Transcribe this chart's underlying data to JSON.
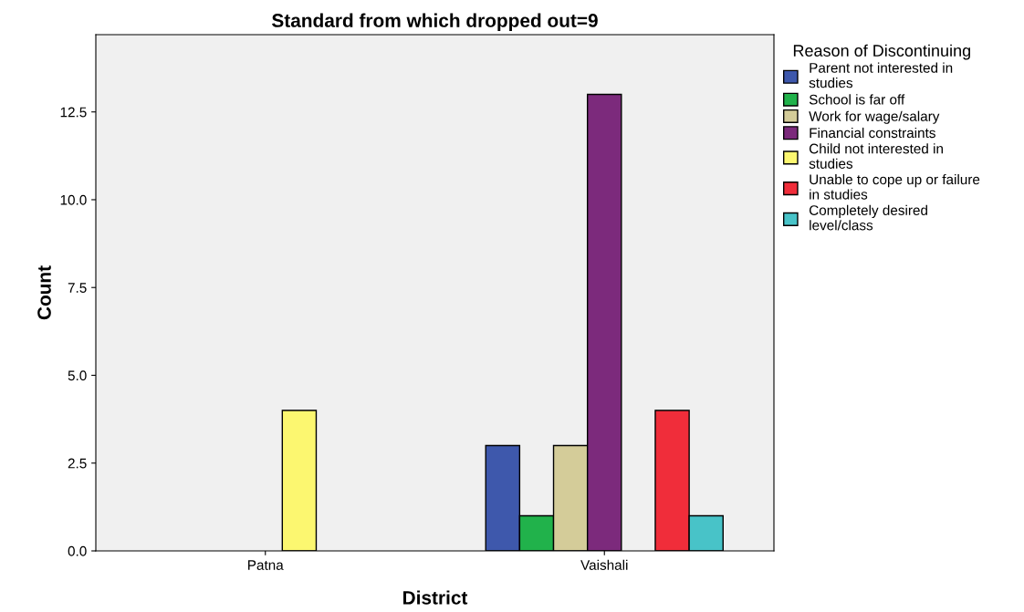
{
  "chart_data": {
    "type": "bar",
    "title": "Standard from which dropped out=9",
    "xlabel": "District",
    "ylabel": "Count",
    "legend_title": "Reason of Discontinuing",
    "categories": [
      "Patna",
      "Vaishali"
    ],
    "series": [
      {
        "name": "Parent not interested in\nstudies",
        "color": "#3e58ac",
        "values": [
          null,
          3
        ]
      },
      {
        "name": "School is far off",
        "color": "#21b24b",
        "values": [
          null,
          1
        ]
      },
      {
        "name": "Work for wage/salary",
        "color": "#d4cc99",
        "values": [
          null,
          3
        ]
      },
      {
        "name": "Financial constraints",
        "color": "#7c2a7c",
        "values": [
          null,
          13
        ]
      },
      {
        "name": "Child not interested in\nstudies",
        "color": "#fcf770",
        "values": [
          4,
          null
        ]
      },
      {
        "name": "Unable to cope up or failure\nin studies",
        "color": "#f02d3a",
        "values": [
          null,
          4
        ]
      },
      {
        "name": "Completely desired\nlevel/class",
        "color": "#48c3c8",
        "values": [
          null,
          1
        ]
      }
    ],
    "ylim": [
      0,
      14.7
    ],
    "yticks": [
      {
        "value": 0,
        "label": "0.0"
      },
      {
        "value": 2.5,
        "label": "2.5"
      },
      {
        "value": 5,
        "label": "5.0"
      },
      {
        "value": 7.5,
        "label": "7.5"
      },
      {
        "value": 10,
        "label": "10.0"
      },
      {
        "value": 12.5,
        "label": "12.5"
      }
    ],
    "grid": false,
    "legend": "right"
  }
}
